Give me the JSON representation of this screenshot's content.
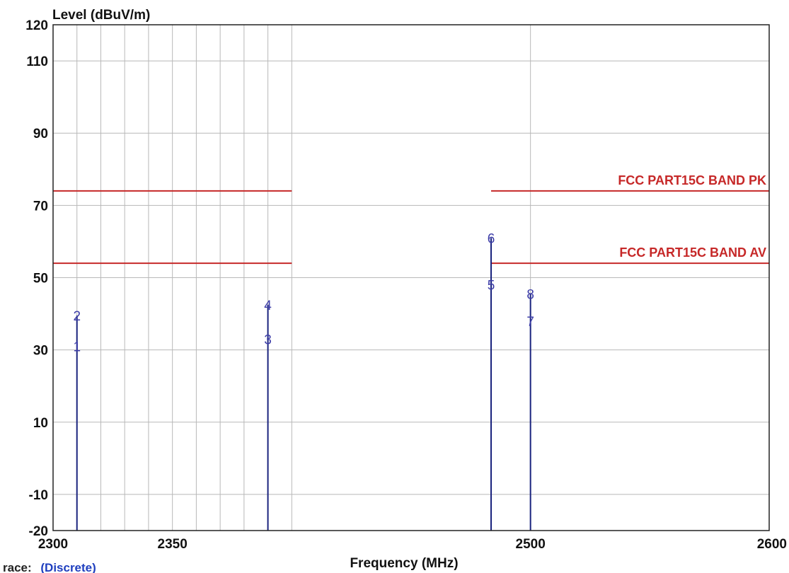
{
  "chart_data": {
    "type": "line",
    "ylabel": "Level (dBuV/m)",
    "xlabel": "Frequency (MHz)",
    "xlim": [
      2300,
      2600
    ],
    "ylim": [
      -20,
      120
    ],
    "x_ticks": [
      2300,
      2350,
      2500,
      2600
    ],
    "y_ticks": [
      120,
      110,
      90,
      70,
      50,
      30,
      10,
      -10,
      -20
    ],
    "grid": true,
    "y_gridlines": [
      110,
      90,
      70,
      50,
      30,
      10,
      -10
    ],
    "x_gridlines": [
      2310,
      2320,
      2330,
      2340,
      2350,
      2360,
      2370,
      2380,
      2390,
      2400,
      2500
    ],
    "limit_lines": [
      {
        "name": "FCC PART15C  BAND PK",
        "value": 74,
        "segments": [
          [
            2300,
            2400
          ],
          [
            2483.5,
            2600
          ]
        ],
        "color": "#c62828"
      },
      {
        "name": "FCC PART15C  BAND AV",
        "value": 54,
        "segments": [
          [
            2300,
            2400
          ],
          [
            2483.5,
            2600
          ]
        ],
        "color": "#c62828"
      }
    ],
    "markers": [
      {
        "label": "1",
        "x": 2310,
        "y": 31
      },
      {
        "label": "2",
        "x": 2310,
        "y": 39.5
      },
      {
        "label": "3",
        "x": 2390,
        "y": 33
      },
      {
        "label": "4",
        "x": 2390,
        "y": 42.5
      },
      {
        "label": "5",
        "x": 2483.5,
        "y": 48
      },
      {
        "label": "6",
        "x": 2483.5,
        "y": 61
      },
      {
        "label": "7",
        "x": 2500,
        "y": 38
      },
      {
        "label": "8",
        "x": 2500,
        "y": 45.5
      }
    ],
    "trace_color": "#1a237e",
    "marker_label_color": "#3d3da8",
    "trace_label": "race:",
    "trace_value": "(Discrete)"
  }
}
